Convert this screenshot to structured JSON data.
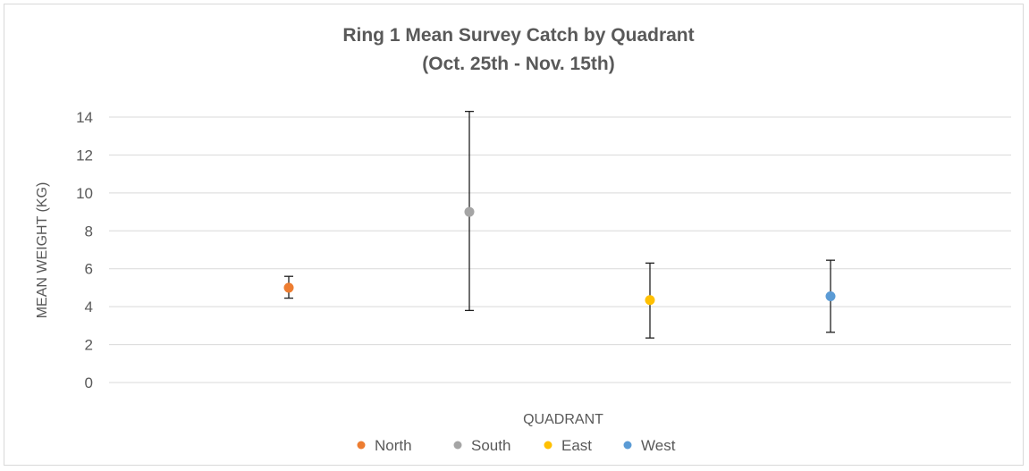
{
  "chart_data": {
    "type": "scatter",
    "title": "Ring 1 Mean Survey Catch by Quadrant",
    "subtitle": "(Oct. 25th - Nov. 15th)",
    "xlabel": "QUADRANT",
    "ylabel": "MEAN WEIGHT (KG)",
    "ylim": [
      0,
      14
    ],
    "yticks": [
      "0",
      "2",
      "4",
      "6",
      "8",
      "10",
      "12",
      "14"
    ],
    "grid": true,
    "legend_position": "bottom",
    "series": [
      {
        "name": "North",
        "x": 1,
        "y": 5.0,
        "err_low": 4.45,
        "err_high": 5.6,
        "color": "#ED7D31"
      },
      {
        "name": "South",
        "x": 2,
        "y": 9.0,
        "err_low": 3.8,
        "err_high": 14.3,
        "color": "#A5A5A5"
      },
      {
        "name": "East",
        "x": 3,
        "y": 4.35,
        "err_low": 2.35,
        "err_high": 6.3,
        "color": "#FFC000"
      },
      {
        "name": "West",
        "x": 4,
        "y": 4.55,
        "err_low": 2.65,
        "err_high": 6.45,
        "color": "#5B9BD5"
      }
    ]
  }
}
